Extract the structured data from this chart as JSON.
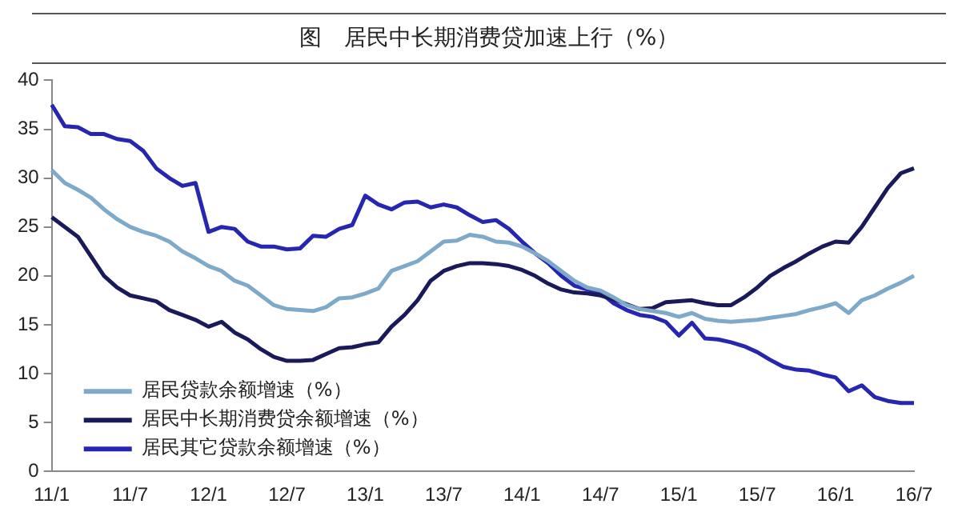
{
  "chart_data": {
    "type": "line",
    "title": "图　居民中长期消费贷加速上行（%）",
    "categories": [
      "11/1",
      null,
      null,
      null,
      null,
      null,
      "11/7",
      null,
      null,
      null,
      null,
      null,
      "12/1",
      null,
      null,
      null,
      null,
      null,
      "12/7",
      null,
      null,
      null,
      null,
      null,
      "13/1",
      null,
      null,
      null,
      null,
      null,
      "13/7",
      null,
      null,
      null,
      null,
      null,
      "14/1",
      null,
      null,
      null,
      null,
      null,
      "14/7",
      null,
      null,
      null,
      null,
      null,
      "15/1",
      null,
      null,
      null,
      null,
      null,
      "15/7",
      null,
      null,
      null,
      null,
      null,
      "16/1",
      null,
      null,
      null,
      null,
      null,
      "16/7"
    ],
    "series": [
      {
        "name": "居民贷款余额增速（%）",
        "color": "#7fa9c9",
        "values": [
          30.8,
          29.5,
          28.8,
          28,
          26.8,
          25.8,
          25,
          24.5,
          24.1,
          23.5,
          22.5,
          21.8,
          21,
          20.5,
          19.5,
          19,
          18,
          17,
          16.6,
          16.5,
          16.4,
          16.8,
          17.7,
          17.8,
          18.2,
          18.7,
          20.5,
          21,
          21.5,
          22.5,
          23.5,
          23.6,
          24.2,
          24,
          23.5,
          23.4,
          23,
          22.3,
          21.5,
          20.5,
          19.5,
          18.8,
          18.5,
          17.8,
          17,
          16.6,
          16.4,
          16.2,
          15.8,
          16.2,
          15.6,
          15.4,
          15.3,
          15.4,
          15.5,
          15.7,
          15.9,
          16.1,
          16.5,
          16.8,
          17.2,
          16.2,
          17.5,
          18,
          18.7,
          19.3,
          20
        ]
      },
      {
        "name": "居民中长期消费贷余额增速（%）",
        "color": "#1a1a5a",
        "values": [
          26,
          25,
          24,
          22,
          20,
          18.8,
          18,
          17.7,
          17.4,
          16.5,
          16,
          15.5,
          14.8,
          15.3,
          14.2,
          13.5,
          12.5,
          11.7,
          11.3,
          11.3,
          11.4,
          12,
          12.6,
          12.7,
          13,
          13.2,
          14.8,
          16,
          17.5,
          19.5,
          20.5,
          21,
          21.3,
          21.3,
          21.2,
          21,
          20.6,
          20,
          19.2,
          18.6,
          18.3,
          18.2,
          18,
          17.6,
          17.1,
          16.6,
          16.7,
          17.3,
          17.4,
          17.5,
          17.2,
          17,
          17,
          17.8,
          18.8,
          20,
          20.8,
          21.5,
          22.3,
          23,
          23.5,
          23.4,
          25,
          27,
          29,
          30.5,
          31
        ]
      },
      {
        "name": "居民其它贷款余额增速（%）",
        "color": "#2626b0",
        "values": [
          37.5,
          35.3,
          35.2,
          34.5,
          34.5,
          34,
          33.8,
          32.8,
          31,
          30,
          29.2,
          29.5,
          24.5,
          25,
          24.8,
          23.5,
          23,
          23,
          22.7,
          22.8,
          24.1,
          24,
          24.8,
          25.2,
          28.2,
          27.3,
          26.8,
          27.5,
          27.6,
          27,
          27.3,
          27,
          26.2,
          25.5,
          25.7,
          24.8,
          23.5,
          22.3,
          21.3,
          20,
          19,
          18.6,
          18.3,
          17.2,
          16.5,
          16,
          15.8,
          15.3,
          13.9,
          15.2,
          13.6,
          13.5,
          13.2,
          12.8,
          12.2,
          11.4,
          10.7,
          10.4,
          10.3,
          9.9,
          9.6,
          8.2,
          8.8,
          7.6,
          7.2,
          7,
          7
        ]
      }
    ],
    "ylim": [
      0,
      40
    ],
    "yticks": [
      0,
      5,
      10,
      15,
      20,
      25,
      30,
      35,
      40
    ],
    "grid": false,
    "legend": "bottom left",
    "marker": "none",
    "line_style": "solid"
  }
}
